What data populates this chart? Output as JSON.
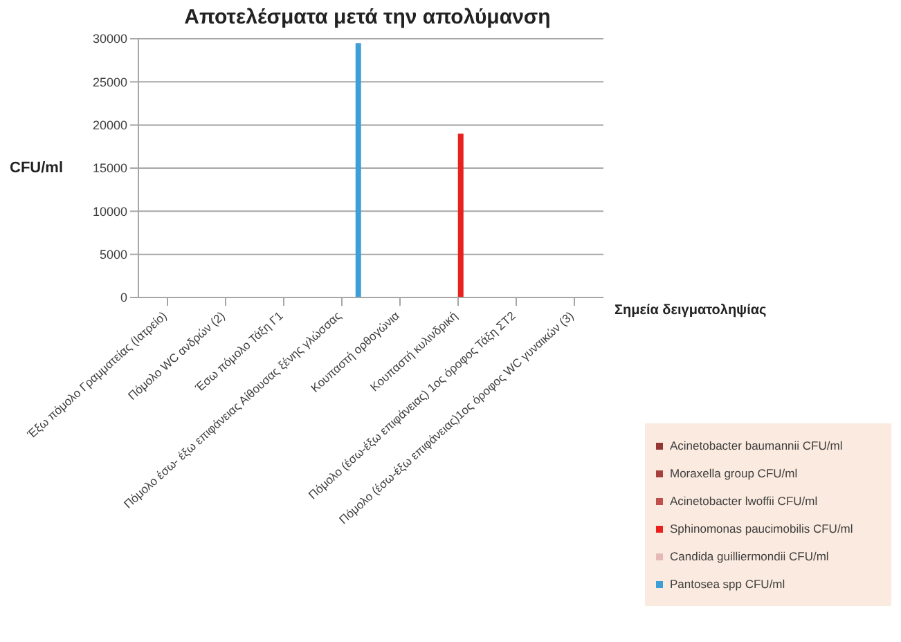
{
  "chart_data": {
    "type": "bar",
    "title": "Αποτελέσματα μετά την απολύμανση",
    "xlabel": "Σημεία δειγματοληψίας",
    "ylabel": "CFU/ml",
    "categories": [
      "Έξω πόμολο Γραμματείας (Ιατρείο)",
      "Πόμολο WC ανδρών (2)",
      "Έσω πόμολο Τάξη Γ1",
      "Πόμολο έσω- έξω επιφάνειας Αίθουσας ξένης γλώσσας",
      "Κουπαστή ορθογώνια",
      "Κουπαστή κυλινδρική",
      "Πόμολο (έσω-έξω επιφάνειας) 1ος όροφος Τάξη ΣΤ2",
      "Πόμολο (έσω-έξω επιφάνειας)1ος όροφος WC γυναικών (3)"
    ],
    "series": [
      {
        "name": "Acinetobacter baumannii CFU/ml",
        "color": "#943634",
        "values": [
          0,
          0,
          0,
          0,
          0,
          0,
          0,
          0
        ]
      },
      {
        "name": "Moraxella group CFU/ml",
        "color": "#a5403d",
        "values": [
          0,
          0,
          0,
          0,
          0,
          0,
          0,
          0
        ]
      },
      {
        "name": "Acinetobacter lwoffii CFU/ml",
        "color": "#c0504d",
        "values": [
          0,
          0,
          0,
          0,
          0,
          0,
          0,
          0
        ]
      },
      {
        "name": "Sphinomonas paucimobilis CFU/ml",
        "color": "#e8201e",
        "values": [
          0,
          0,
          0,
          0,
          0,
          19000,
          0,
          0
        ]
      },
      {
        "name": "Candida guilliermondii CFU/ml",
        "color": "#e6b9b8",
        "values": [
          0,
          0,
          0,
          0,
          0,
          0,
          0,
          0
        ]
      },
      {
        "name": "Pantosea spp CFU/ml",
        "color": "#3e9fd6",
        "values": [
          0,
          0,
          0,
          29500,
          0,
          0,
          0,
          0
        ]
      }
    ],
    "ylim": [
      0,
      30000
    ],
    "yticks": [
      0,
      5000,
      10000,
      15000,
      20000,
      25000,
      30000
    ],
    "grid": "y",
    "legend": "bottom right"
  }
}
